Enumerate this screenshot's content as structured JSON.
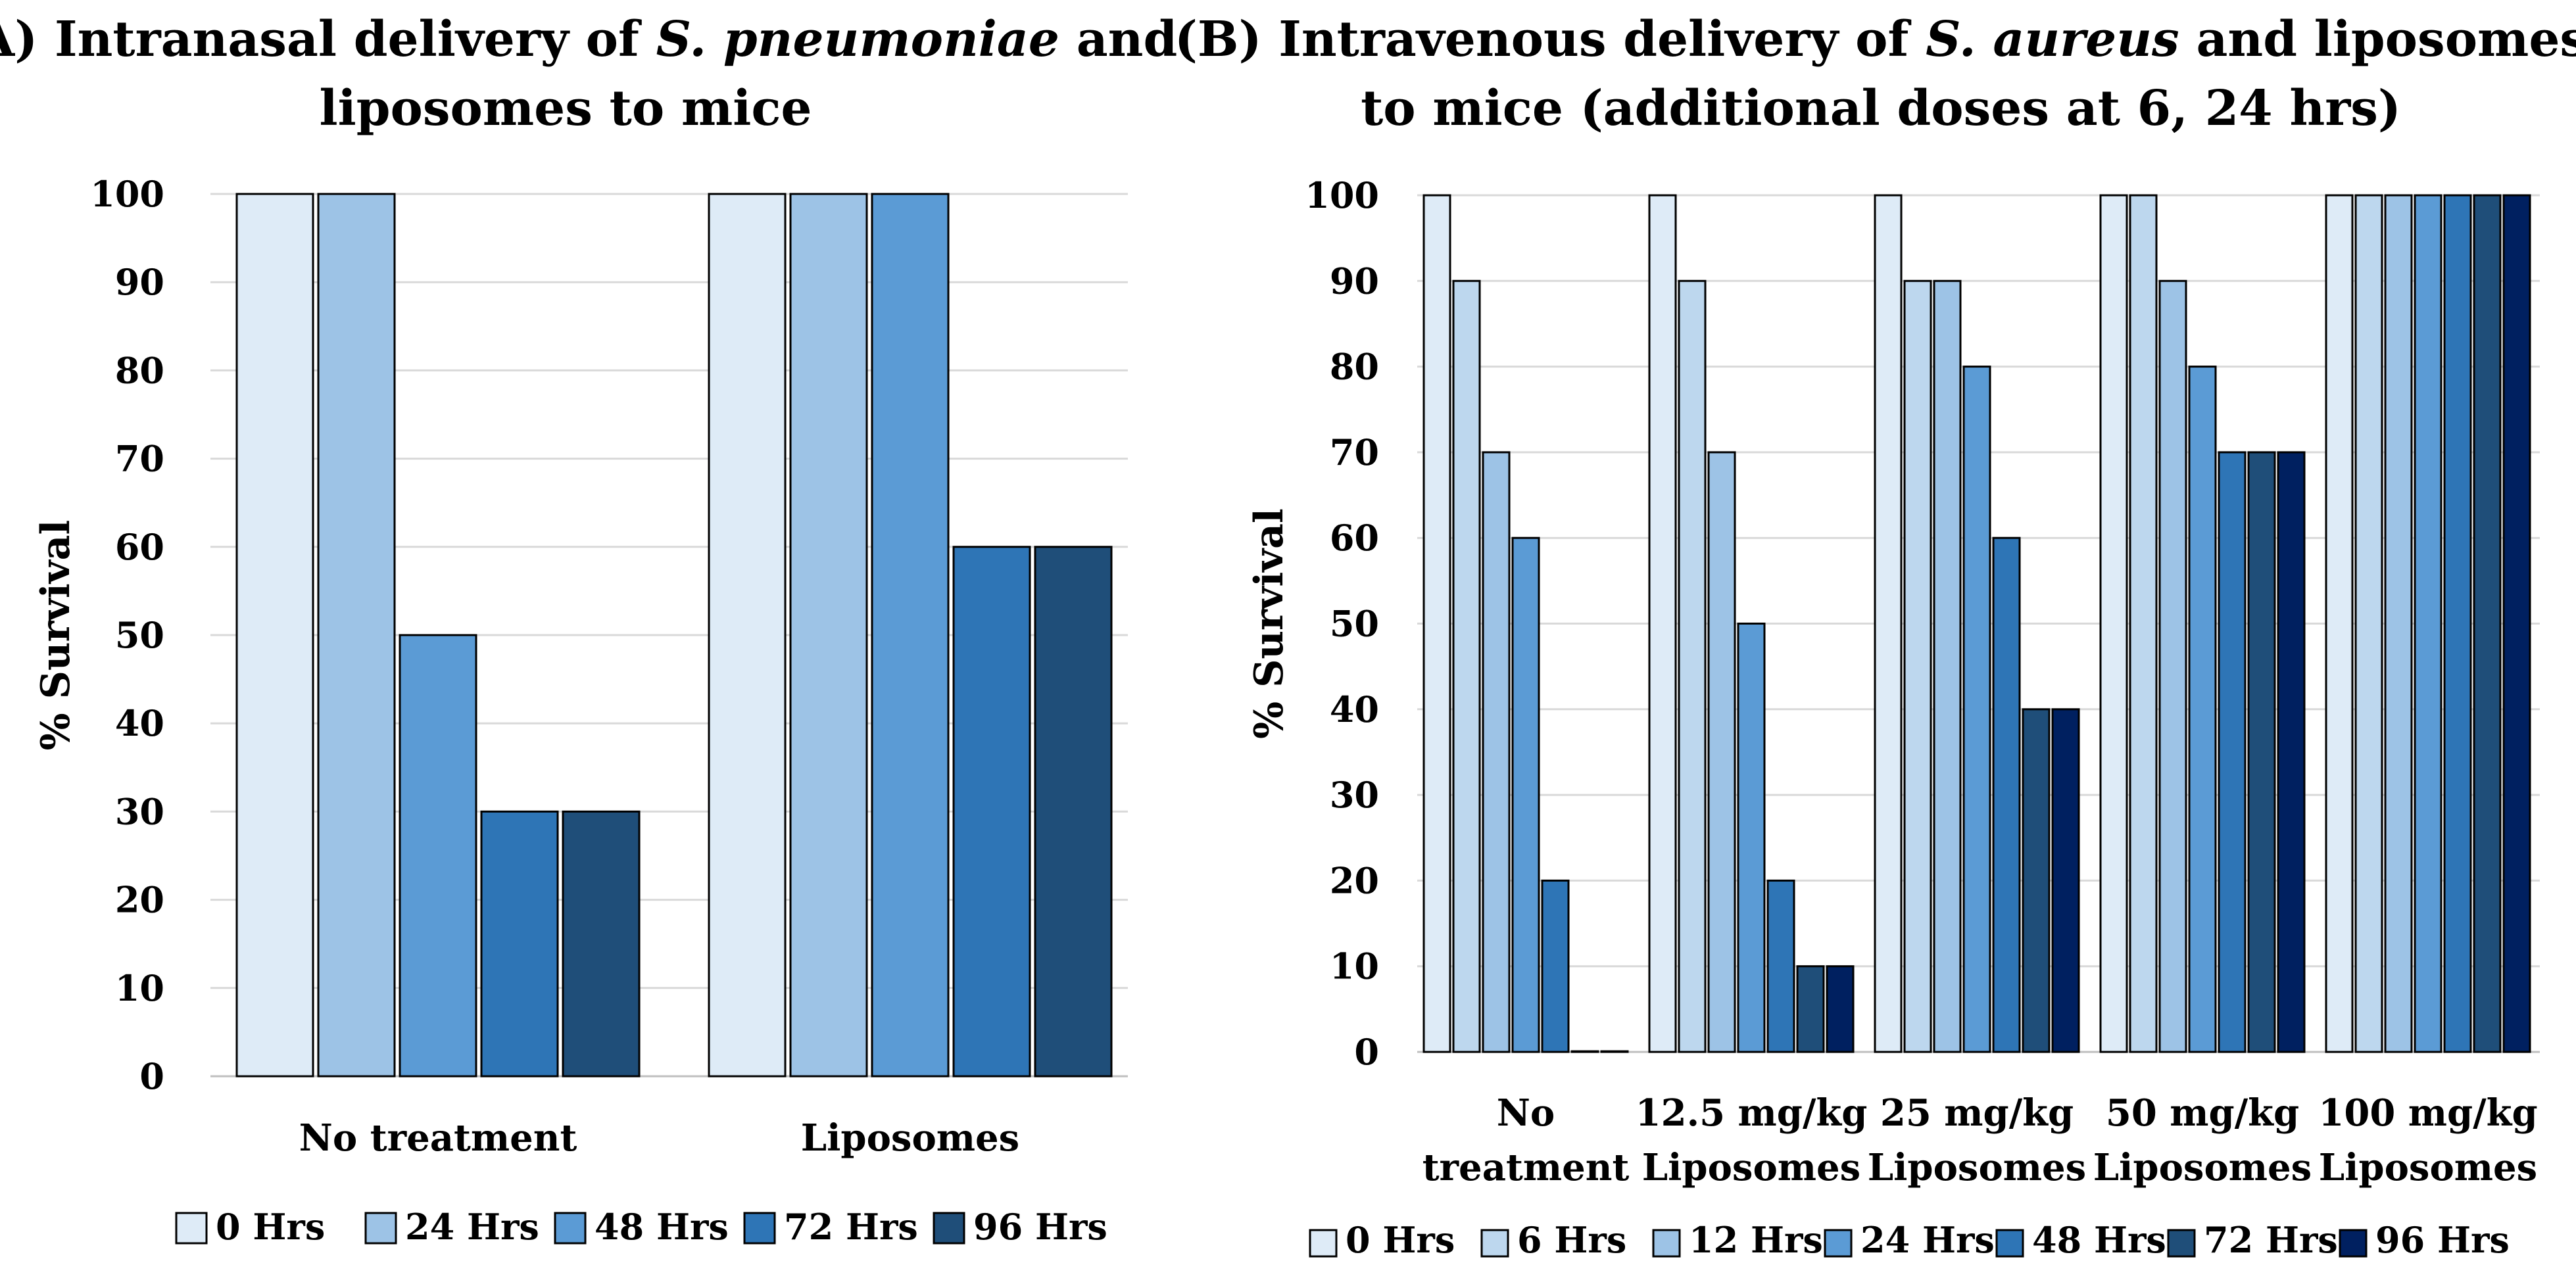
{
  "chart_data": [
    {
      "type": "bar",
      "title": [
        "(A) Intranasal delivery of ",
        "S. pneumoniae",
        " and",
        "liposomes to mice"
      ],
      "title_italic": "S. pneumoniae",
      "ylabel": "% Survival",
      "xlabel": "",
      "ylim": [
        0,
        100
      ],
      "yticks": [
        0,
        10,
        20,
        30,
        40,
        50,
        60,
        70,
        80,
        90,
        100
      ],
      "grid": true,
      "legend_position": "bottom",
      "categories": [
        [
          "No treatment"
        ],
        [
          "Liposomes"
        ]
      ],
      "series": [
        {
          "name": "0 Hrs",
          "color": "#deebf7",
          "values": [
            100,
            100
          ]
        },
        {
          "name": "24 Hrs",
          "color": "#9dc3e6",
          "values": [
            100,
            100
          ]
        },
        {
          "name": "48 Hrs",
          "color": "#5b9bd5",
          "values": [
            50,
            100
          ]
        },
        {
          "name": "72 Hrs",
          "color": "#2e75b6",
          "values": [
            30,
            60
          ]
        },
        {
          "name": "96 Hrs",
          "color": "#1f4e79",
          "values": [
            30,
            60
          ]
        }
      ]
    },
    {
      "type": "bar",
      "title": [
        "(B) Intravenous delivery of ",
        "S. aureus",
        " and liposomes",
        "to mice (additional doses at 6, 24 hrs)"
      ],
      "title_italic": "S. aureus",
      "ylabel": "% Survival",
      "xlabel": "",
      "ylim": [
        0,
        100
      ],
      "yticks": [
        0,
        10,
        20,
        30,
        40,
        50,
        60,
        70,
        80,
        90,
        100
      ],
      "grid": true,
      "legend_position": "bottom",
      "categories": [
        [
          "No",
          "treatment"
        ],
        [
          "12.5 mg/kg",
          "Liposomes"
        ],
        [
          "25 mg/kg",
          "Liposomes"
        ],
        [
          "50 mg/kg",
          "Liposomes"
        ],
        [
          "100 mg/kg",
          "Liposomes"
        ]
      ],
      "series": [
        {
          "name": "0 Hrs",
          "color": "#deebf7",
          "values": [
            100,
            100,
            100,
            100,
            100
          ]
        },
        {
          "name": "6 Hrs",
          "color": "#bdd7ee",
          "values": [
            90,
            90,
            90,
            100,
            100
          ]
        },
        {
          "name": "12 Hrs",
          "color": "#9dc3e6",
          "values": [
            70,
            70,
            90,
            90,
            100
          ]
        },
        {
          "name": "24 Hrs",
          "color": "#5b9bd5",
          "values": [
            60,
            50,
            80,
            80,
            100
          ]
        },
        {
          "name": "48 Hrs",
          "color": "#2e75b6",
          "values": [
            20,
            20,
            60,
            70,
            100
          ]
        },
        {
          "name": "72 Hrs",
          "color": "#1f4e79",
          "values": [
            0,
            10,
            40,
            70,
            100
          ]
        },
        {
          "name": "96 Hrs",
          "color": "#002060",
          "values": [
            0,
            10,
            40,
            70,
            100
          ]
        }
      ]
    }
  ]
}
